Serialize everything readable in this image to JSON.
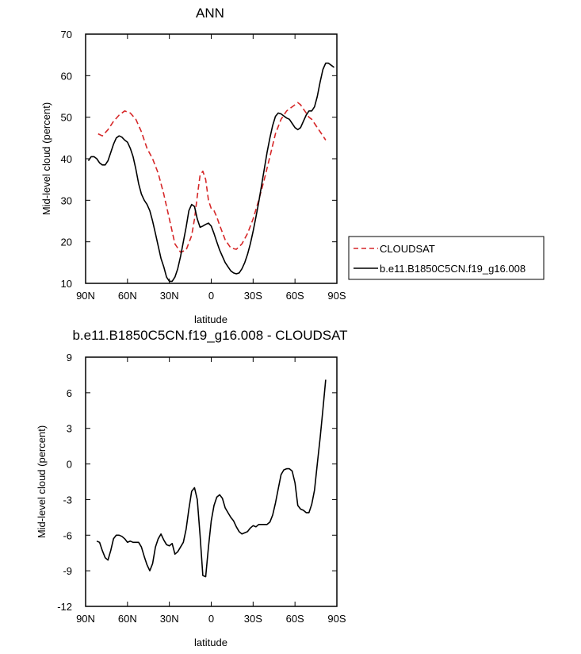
{
  "chart_data": [
    {
      "type": "line",
      "title": "ANN",
      "xlabel": "latitude",
      "ylabel": "Mid-level cloud (percent)",
      "xlim": [
        90,
        -90
      ],
      "x_tick_values": [
        90,
        60,
        30,
        0,
        -30,
        -60,
        -90
      ],
      "x_tick_labels": [
        "90N",
        "60N",
        "30N",
        "0",
        "30S",
        "60S",
        "90S"
      ],
      "ylim": [
        10,
        70
      ],
      "y_ticks": [
        10,
        20,
        30,
        40,
        50,
        60,
        70
      ],
      "legend_position": "right",
      "series": [
        {
          "name": "CLOUDSAT",
          "color": "#d62728",
          "dash": "dashed",
          "x": [
            81,
            78,
            74,
            70,
            66,
            62,
            58,
            54,
            50,
            46,
            42,
            38,
            34,
            30,
            26,
            22,
            18,
            14,
            12,
            10,
            8,
            6,
            4,
            2,
            0,
            -2,
            -4,
            -6,
            -10,
            -14,
            -18,
            -22,
            -26,
            -30,
            -34,
            -38,
            -42,
            -46,
            -50,
            -54,
            -56,
            -58,
            -60,
            -62,
            -64,
            -66,
            -68,
            -70,
            -72,
            -74,
            -76,
            -78,
            -80,
            -82
          ],
          "y": [
            46,
            45.5,
            47,
            49,
            50.5,
            51.5,
            51,
            49.5,
            46.5,
            42.5,
            40,
            36.5,
            31.5,
            25.5,
            19.5,
            17.5,
            18,
            21.5,
            25.5,
            31,
            36,
            37,
            35,
            30,
            28,
            27.5,
            26,
            24,
            20.5,
            18.5,
            18.2,
            19.5,
            22,
            25.5,
            30,
            35,
            40.5,
            46,
            49.5,
            51.5,
            52,
            52.5,
            53,
            53.5,
            53,
            52,
            51,
            50,
            49.5,
            48.5,
            47.5,
            46.5,
            45.5,
            44.5
          ]
        },
        {
          "name": "b.e11.B1850C5CN.f19_g16.008",
          "color": "#000000",
          "dash": "solid",
          "x": [
            88,
            86,
            84,
            82,
            80,
            78,
            76,
            74,
            72,
            70,
            68,
            66,
            64,
            62,
            60,
            58,
            56,
            54,
            52,
            50,
            48,
            46,
            44,
            42,
            40,
            38,
            36,
            34,
            32,
            30,
            28,
            26,
            24,
            22,
            20,
            18,
            16,
            14,
            12,
            10,
            8,
            6,
            4,
            2,
            0,
            -2,
            -4,
            -6,
            -8,
            -10,
            -12,
            -14,
            -16,
            -18,
            -20,
            -22,
            -24,
            -26,
            -28,
            -30,
            -32,
            -34,
            -36,
            -38,
            -40,
            -42,
            -44,
            -46,
            -48,
            -50,
            -52,
            -54,
            -56,
            -58,
            -60,
            -62,
            -64,
            -66,
            -68,
            -70,
            -72,
            -74,
            -76,
            -78,
            -80,
            -82,
            -84,
            -86,
            -88
          ],
          "y": [
            39.5,
            40.5,
            40.5,
            40,
            39,
            38.5,
            38.5,
            39.5,
            41.5,
            43.5,
            45,
            45.5,
            45.2,
            44.5,
            44,
            42.5,
            40.5,
            37.5,
            34,
            31.5,
            30,
            29,
            27.5,
            25,
            22,
            19,
            16,
            14,
            11.5,
            10.5,
            10.5,
            11.5,
            13.5,
            16.5,
            20,
            23.5,
            27.5,
            29,
            28.5,
            25.5,
            23.5,
            23.8,
            24.2,
            24.5,
            23.8,
            22,
            20,
            18,
            16.5,
            15,
            14,
            13,
            12.5,
            12.3,
            12.5,
            13.5,
            15,
            17,
            19.5,
            22.5,
            26,
            29.5,
            33.5,
            37.5,
            41.5,
            45,
            48,
            50.2,
            51,
            50.8,
            50.3,
            49.8,
            49.5,
            48.5,
            47.5,
            47,
            47.5,
            49,
            50.5,
            51.5,
            51.5,
            52.5,
            55,
            58.5,
            61.5,
            63,
            63,
            62.5,
            62
          ]
        }
      ]
    },
    {
      "type": "line",
      "title": "b.e11.B1850C5CN.f19_g16.008 - CLOUDSAT",
      "xlabel": "latitude",
      "ylabel": "Mid-level cloud (percent)",
      "xlim": [
        90,
        -90
      ],
      "x_tick_values": [
        90,
        60,
        30,
        0,
        -30,
        -60,
        -90
      ],
      "x_tick_labels": [
        "90N",
        "60N",
        "30N",
        "0",
        "30S",
        "60S",
        "90S"
      ],
      "ylim": [
        -12,
        9
      ],
      "y_ticks": [
        -12,
        -9,
        -6,
        -3,
        0,
        3,
        6,
        9
      ],
      "series": [
        {
          "color": "#000000",
          "dash": "solid",
          "x": [
            82,
            80,
            78,
            76,
            74,
            72,
            70,
            68,
            66,
            64,
            62,
            60,
            58,
            56,
            54,
            52,
            50,
            48,
            46,
            44,
            42,
            40,
            38,
            36,
            34,
            32,
            30,
            28,
            26,
            24,
            22,
            20,
            18,
            16,
            14,
            12,
            10,
            8,
            6,
            4,
            2,
            0,
            -2,
            -4,
            -6,
            -8,
            -10,
            -12,
            -14,
            -16,
            -18,
            -20,
            -22,
            -24,
            -26,
            -28,
            -30,
            -32,
            -34,
            -36,
            -38,
            -40,
            -42,
            -44,
            -46,
            -48,
            -50,
            -52,
            -54,
            -56,
            -58,
            -60,
            -62,
            -64,
            -66,
            -68,
            -70,
            -72,
            -74,
            -76,
            -78,
            -80,
            -82
          ],
          "y": [
            -6.5,
            -6.6,
            -7.3,
            -7.9,
            -8.1,
            -7.3,
            -6.3,
            -6,
            -6,
            -6.1,
            -6.3,
            -6.6,
            -6.5,
            -6.6,
            -6.6,
            -6.6,
            -7,
            -7.8,
            -8.5,
            -9,
            -8.4,
            -7,
            -6.3,
            -5.9,
            -6.4,
            -6.8,
            -6.9,
            -6.7,
            -7.6,
            -7.4,
            -7,
            -6.6,
            -5.5,
            -3.8,
            -2.3,
            -2,
            -3,
            -6,
            -9.4,
            -9.5,
            -7,
            -4.8,
            -3.5,
            -2.8,
            -2.6,
            -2.9,
            -3.7,
            -4.1,
            -4.5,
            -4.8,
            -5.3,
            -5.7,
            -5.9,
            -5.8,
            -5.7,
            -5.4,
            -5.2,
            -5.3,
            -5.1,
            -5.1,
            -5.1,
            -5.1,
            -4.9,
            -4.3,
            -3.3,
            -2.1,
            -0.9,
            -0.5,
            -0.4,
            -0.4,
            -0.6,
            -1.6,
            -3.5,
            -3.8,
            -3.9,
            -4.1,
            -4.1,
            -3.4,
            -2.2,
            0,
            2.2,
            4.6,
            7.1
          ]
        }
      ]
    }
  ]
}
